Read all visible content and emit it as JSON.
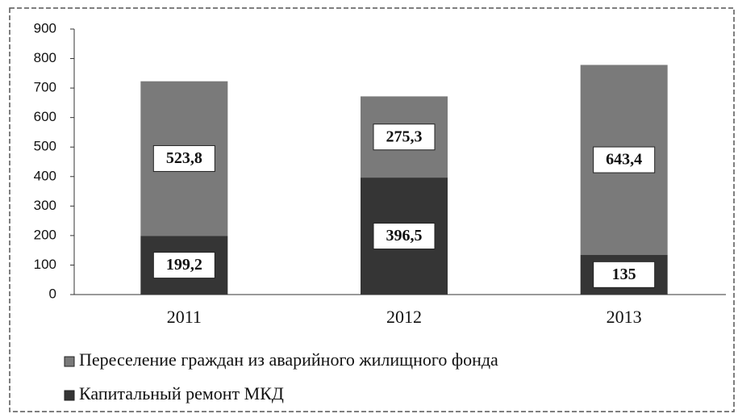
{
  "chart_data": {
    "type": "stacked_bar",
    "categories": [
      "2011",
      "2012",
      "2013"
    ],
    "series": [
      {
        "name": "Капитальный ремонт МКД",
        "color": "#353535",
        "values": [
          199.2,
          396.5,
          135
        ],
        "value_labels": [
          "199,2",
          "396,5",
          "135"
        ]
      },
      {
        "name": "Переселение граждан из аварийного жилищного фонда",
        "color": "#7a7a7a",
        "values": [
          523.8,
          275.3,
          643.4
        ],
        "value_labels": [
          "523,8",
          "275,3",
          "643,4"
        ]
      }
    ],
    "ylim": [
      0,
      900
    ],
    "yticks": [
      0,
      100,
      200,
      300,
      400,
      500,
      600,
      700,
      800,
      900
    ],
    "legend": "bottom"
  }
}
